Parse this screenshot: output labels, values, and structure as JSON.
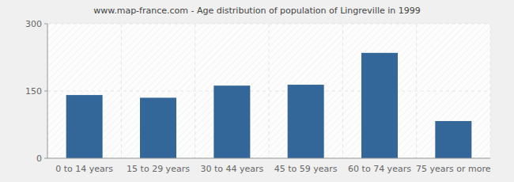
{
  "chart_data": {
    "type": "bar",
    "title": "www.map-france.com - Age distribution of population of Lingreville in 1999",
    "categories": [
      "0 to 14 years",
      "15 to 29 years",
      "30 to 44 years",
      "45 to 59 years",
      "60 to 74 years",
      "75 years or more"
    ],
    "values": [
      141,
      135,
      162,
      164,
      235,
      83
    ],
    "color": "#336699",
    "ylim": [
      0,
      300
    ],
    "yticks": [
      0,
      150,
      300
    ],
    "grid": true
  }
}
